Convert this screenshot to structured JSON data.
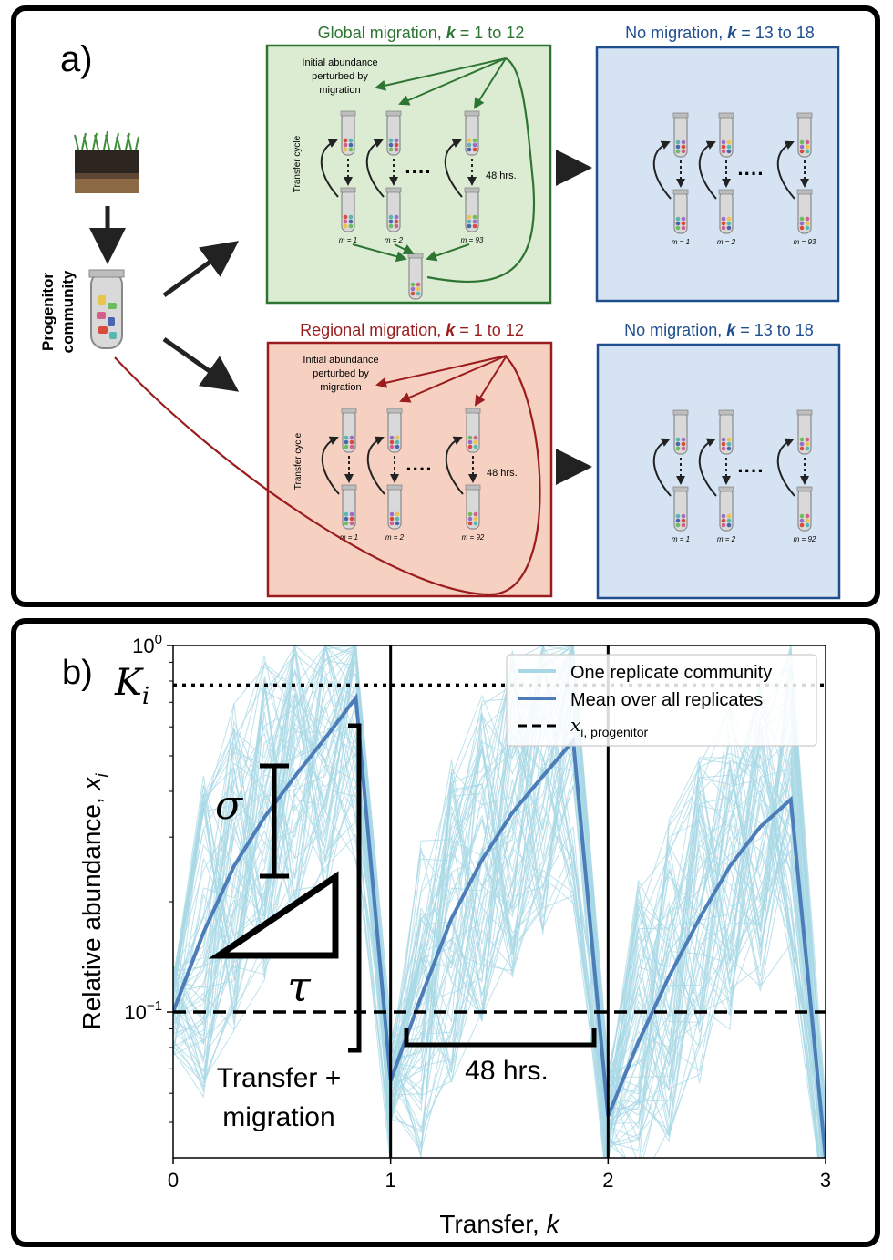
{
  "panel_a": {
    "label": "a)",
    "progenitor_label": "Progenitor\ncommunity",
    "global": {
      "title_prefix": "Global migration, ",
      "title_k": "k",
      "title_suffix": " = 1 to 12",
      "note": [
        "Initial abundance",
        "perturbed by",
        "migration"
      ],
      "cycle_label": "Transfer cycle",
      "time": "48 hrs.",
      "m_labels": [
        "m = 1",
        "m = 2",
        "m = 93"
      ]
    },
    "global_nomig": {
      "title_prefix": "No migration, ",
      "title_k": "k",
      "title_suffix": " = 13 to 18",
      "m_labels": [
        "m = 1",
        "m = 2",
        "m = 93"
      ]
    },
    "regional": {
      "title_prefix": "Regional migration, ",
      "title_k": "k",
      "title_suffix": " = 1 to 12",
      "note": [
        "Initial abundance",
        "perturbed by",
        "migration"
      ],
      "cycle_label": "Transfer cycle",
      "time": "48 hrs.",
      "m_labels": [
        "m = 1",
        "m = 2",
        "m = 92"
      ]
    },
    "regional_nomig": {
      "title_prefix": "No migration, ",
      "title_k": "k",
      "title_suffix": " = 13 to 18",
      "m_labels": [
        "m = 1",
        "m = 2",
        "m = 92"
      ]
    },
    "colors": {
      "global_fill": "#dcecd3",
      "global_stroke": "#2e7534",
      "regional_fill": "#f6d1c2",
      "regional_stroke": "#9b1c1c",
      "nomig_fill": "#d5e3f2",
      "nomig_stroke": "#1f4e8f"
    }
  },
  "panel_b": {
    "label": "b)",
    "sigma": "σ",
    "tau": "τ",
    "K_label": "K",
    "K_sub": "i",
    "transfer_migration": [
      "Transfer +",
      "migration"
    ],
    "time_label": "48 hrs."
  },
  "chart_data": {
    "type": "line",
    "xlabel": "Transfer, k",
    "ylabel": "Relative abundance, x_i",
    "y_scale": "log",
    "xlim": [
      0,
      3
    ],
    "ylim": [
      0.04,
      1.0
    ],
    "x_ticks": [
      "0",
      "1",
      "2",
      "3"
    ],
    "y_ticks": [
      "10^0",
      "10^-1"
    ],
    "legend": {
      "placement": "top-right",
      "entries": [
        "One replicate community",
        "Mean over all replicates",
        "x_{i, progenitor}"
      ]
    },
    "series": [
      {
        "name": "Mean over all replicates",
        "x": [
          0,
          0.14,
          0.28,
          0.42,
          0.56,
          0.7,
          0.84,
          1.0
        ],
        "y": [
          0.1,
          0.165,
          0.25,
          0.34,
          0.44,
          0.56,
          0.72,
          0.065
        ]
      },
      {
        "name": "Mean over all replicates",
        "x": [
          1.0,
          1.14,
          1.28,
          1.42,
          1.56,
          1.7,
          1.84,
          2.0
        ],
        "y": [
          0.065,
          0.11,
          0.18,
          0.26,
          0.35,
          0.44,
          0.55,
          0.052
        ]
      },
      {
        "name": "Mean over all replicates",
        "x": [
          2.0,
          2.14,
          2.28,
          2.42,
          2.56,
          2.7,
          2.84,
          3.0
        ],
        "y": [
          0.052,
          0.083,
          0.125,
          0.18,
          0.25,
          0.32,
          0.38,
          0.04
        ]
      }
    ],
    "K_i": 0.78,
    "x_progenitor": 0.1,
    "vertical_lines_x": [
      1,
      2
    ],
    "colors": {
      "replicate": "#a8d8e6",
      "mean": "#4d7db8"
    }
  }
}
